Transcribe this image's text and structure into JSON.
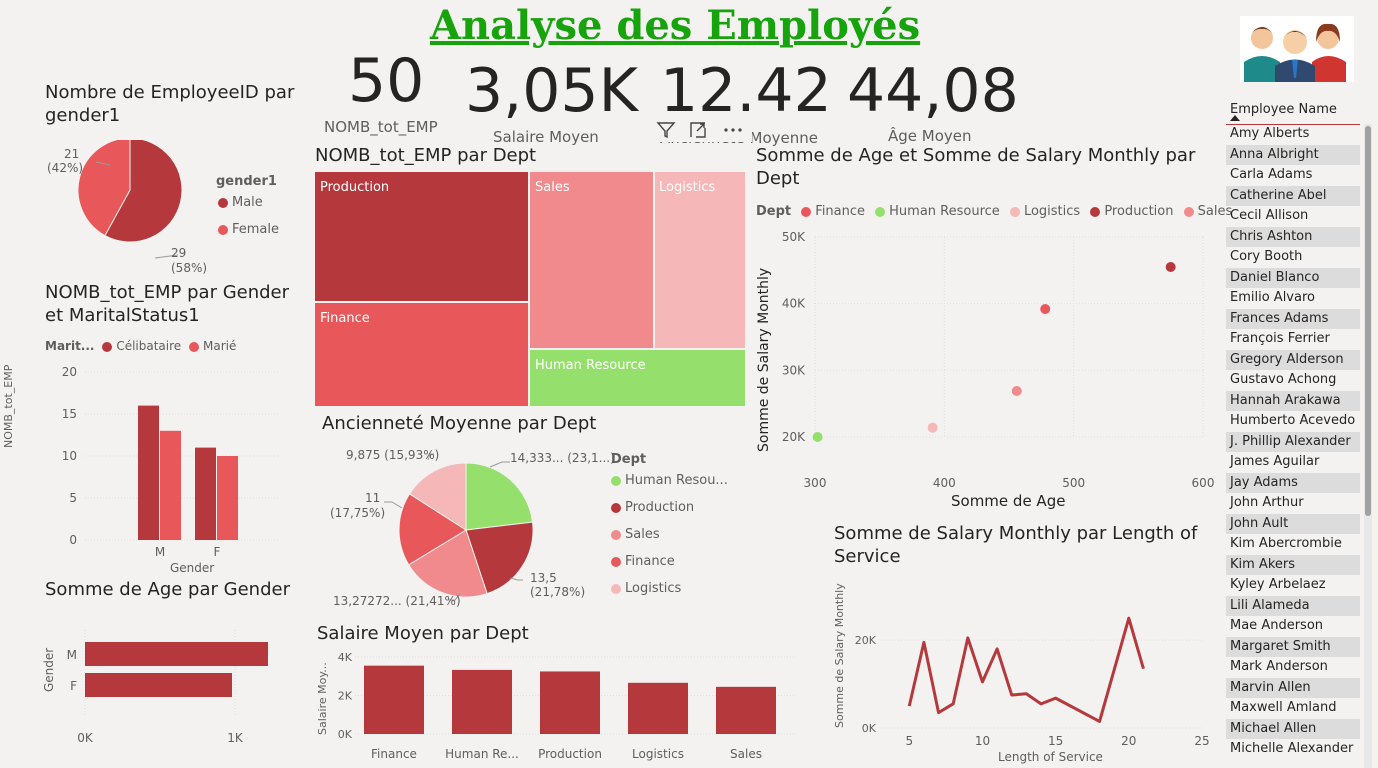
{
  "page": {
    "title": "Analyse des Employés "
  },
  "kpis": [
    {
      "value": "50",
      "label": "NOMB_tot_EMP"
    },
    {
      "value": "3,05K",
      "label": "Salaire Moyen"
    },
    {
      "value": "12.42",
      "label": "Ancienneté Moyenne"
    },
    {
      "value": "44,08",
      "label": "Âge Moyen"
    }
  ],
  "visual_toolbar": {
    "filter_icon": "filter-icon",
    "focus_icon": "focus-mode-icon",
    "more_icon": "more-options-icon"
  },
  "gender_pie": {
    "title": "Nombre de EmployeeID par gender1",
    "legend_title": "gender1",
    "legend": [
      {
        "name": "Male",
        "color": "#b5393c"
      },
      {
        "name": "Female",
        "color": "#e8585b"
      }
    ],
    "label_female_count": "21",
    "label_female_pct": "(42%)",
    "label_male_count": "29",
    "label_male_pct": "(58%)"
  },
  "gender_marital": {
    "title": "NOMB_tot_EMP par Gender et MaritalStatus1",
    "legend_title": "Marit...",
    "legend": [
      {
        "name": "Célibataire",
        "color": "#b5393c"
      },
      {
        "name": "Marié",
        "color": "#e8585b"
      }
    ],
    "ylabel": "NOMB_tot_EMP",
    "xlabel": "Gender"
  },
  "age_gender": {
    "title": "Somme de Age par Gender",
    "ylabel": "Gender"
  },
  "treemap": {
    "title": "NOMB_tot_EMP par Dept",
    "cells": [
      {
        "label": "Production",
        "color": "#b5393c"
      },
      {
        "label": "Sales",
        "color": "#f08a8d"
      },
      {
        "label": "Logistics",
        "color": "#f5b7b8"
      },
      {
        "label": "Finance",
        "color": "#e8585b"
      },
      {
        "label": "Human Resource",
        "color": "#95e06c"
      }
    ]
  },
  "tenure_pie": {
    "title": "Ancienneté Moyenne par Dept",
    "legend_title": "Dept",
    "legend": [
      {
        "name": "Human Resou...",
        "color": "#95e06c"
      },
      {
        "name": "Production",
        "color": "#b5393c"
      },
      {
        "name": "Sales",
        "color": "#f08a8d"
      },
      {
        "name": "Finance",
        "color": "#e8585b"
      },
      {
        "name": "Logistics",
        "color": "#f5b7b8"
      }
    ],
    "labels": {
      "hr": "14,333... (23,1...)",
      "prod_a": "13,5",
      "prod_b": "(21,78%)",
      "sales": "13,27272... (21,41%)",
      "fin_a": "11",
      "fin_b": "(17,75%)",
      "log": "9,875 (15,93%)"
    }
  },
  "salary_dept": {
    "title": "Salaire Moyen par Dept",
    "ylabel": "Salaire Moy..."
  },
  "scatter": {
    "title": "Somme de Age et Somme de Salary Monthly par Dept",
    "legend_title": "Dept",
    "legend": [
      {
        "name": "Finance",
        "color": "#e8585b"
      },
      {
        "name": "Human Resource",
        "color": "#95e06c"
      },
      {
        "name": "Logistics",
        "color": "#f5b7b8"
      },
      {
        "name": "Production",
        "color": "#b5393c"
      },
      {
        "name": "Sales",
        "color": "#f08a8d"
      }
    ],
    "xlabel": "Somme de Age",
    "ylabel": "Somme de Salary Monthly"
  },
  "line": {
    "title": "Somme de Salary Monthly par Length of Service",
    "xlabel": "Length of Service",
    "ylabel": "Somme de Salary Monthly"
  },
  "slicer": {
    "header": "Employee Name",
    "items": [
      "Amy Alberts",
      "Anna Albright",
      "Carla Adams",
      "Catherine Abel",
      "Cecil Allison",
      "Chris Ashton",
      "Cory Booth",
      "Daniel Blanco",
      "Emilio Alvaro",
      "Frances Adams",
      "François Ferrier",
      "Gregory Alderson",
      "Gustavo Achong",
      "Hannah Arakawa",
      "Humberto Acevedo",
      "J. Phillip Alexander",
      "James Aguilar",
      "Jay Adams",
      "John Arthur",
      "John Ault",
      "Kim Abercrombie",
      "Kim Akers",
      "Kyley Arbelaez",
      "Lili Alameda",
      "Mae Anderson",
      "Margaret Smith",
      "Mark Anderson",
      "Marvin Allen",
      "Maxwell Amland",
      "Michael Allen",
      "Michelle Alexander"
    ]
  },
  "chart_data": [
    {
      "type": "pie",
      "title": "Nombre de EmployeeID par gender1",
      "categories": [
        "Male",
        "Female"
      ],
      "values": [
        29,
        21
      ],
      "colors": [
        "#b5393c",
        "#e8585b"
      ]
    },
    {
      "type": "bar",
      "title": "NOMB_tot_EMP par Gender et MaritalStatus1",
      "categories": [
        "M",
        "F"
      ],
      "series": [
        {
          "name": "Célibataire",
          "values": [
            16,
            11
          ],
          "color": "#b5393c"
        },
        {
          "name": "Marié",
          "values": [
            13,
            10
          ],
          "color": "#e8585b"
        }
      ],
      "xlabel": "Gender",
      "ylabel": "NOMB_tot_EMP",
      "ylim": [
        0,
        20
      ],
      "yticks": [
        "0",
        "5",
        "10",
        "15",
        "20"
      ]
    },
    {
      "type": "bar",
      "orientation": "horizontal",
      "title": "Somme de Age par Gender",
      "categories": [
        "M",
        "F"
      ],
      "values": [
        1220,
        980
      ],
      "color": "#b5393c",
      "xlim": [
        0,
        1300
      ],
      "xticks": [
        "0K",
        "1K"
      ],
      "ylabel": "Gender"
    },
    {
      "type": "treemap",
      "title": "NOMB_tot_EMP par Dept",
      "categories": [
        "Production",
        "Finance",
        "Sales",
        "Logistics",
        "Human Resource"
      ]
    },
    {
      "type": "pie",
      "title": "Ancienneté Moyenne par Dept",
      "categories": [
        "Human Resource",
        "Production",
        "Sales",
        "Finance",
        "Logistics"
      ],
      "values": [
        14.333,
        13.5,
        13.27272,
        11,
        9.875
      ],
      "percentages": [
        23.1,
        21.78,
        21.41,
        17.75,
        15.93
      ],
      "colors": [
        "#95e06c",
        "#b5393c",
        "#f08a8d",
        "#e8585b",
        "#f5b7b8"
      ]
    },
    {
      "type": "bar",
      "title": "Salaire Moyen par Dept",
      "categories": [
        "Finance",
        "Human Re...",
        "Production",
        "Logistics",
        "Sales"
      ],
      "values": [
        3550,
        3330,
        3250,
        2660,
        2450
      ],
      "color": "#b5393c",
      "ylabel": "Salaire Moy...",
      "ylim": [
        0,
        4000
      ],
      "yticks": [
        "0K",
        "2K",
        "4K"
      ]
    },
    {
      "type": "scatter",
      "title": "Somme de Age et Somme de Salary Monthly par Dept",
      "points": [
        {
          "name": "Human Resource",
          "x": 302,
          "y": 20000,
          "color": "#95e06c"
        },
        {
          "name": "Logistics",
          "x": 391,
          "y": 21400,
          "color": "#f5b7b8"
        },
        {
          "name": "Sales",
          "x": 456,
          "y": 26900,
          "color": "#f08a8d"
        },
        {
          "name": "Finance",
          "x": 478,
          "y": 39200,
          "color": "#e8585b"
        },
        {
          "name": "Production",
          "x": 575,
          "y": 45500,
          "color": "#b5393c"
        }
      ],
      "xlabel": "Somme de Age",
      "ylabel": "Somme de Salary Monthly",
      "xlim": [
        300,
        600
      ],
      "ylim": [
        20000,
        50000
      ],
      "xticks": [
        "300",
        "400",
        "500",
        "600"
      ],
      "yticks": [
        "20K",
        "30K",
        "40K",
        "50K"
      ]
    },
    {
      "type": "line",
      "title": "Somme de Salary Monthly par Length of Service",
      "x": [
        5,
        6,
        7,
        8,
        9,
        10,
        11,
        12,
        13,
        14,
        15,
        18,
        20,
        21
      ],
      "y": [
        5000,
        19500,
        3500,
        5500,
        20500,
        10500,
        18000,
        7500,
        7800,
        5500,
        6800,
        1500,
        25000,
        13500
      ],
      "color": "#b5393c",
      "xlabel": "Length of Service",
      "ylabel": "Somme de Salary Monthly",
      "xlim": [
        3,
        25
      ],
      "ylim": [
        0,
        28000
      ],
      "xticks": [
        "5",
        "10",
        "15",
        "20",
        "25"
      ],
      "yticks": [
        "0K",
        "20K"
      ]
    }
  ]
}
